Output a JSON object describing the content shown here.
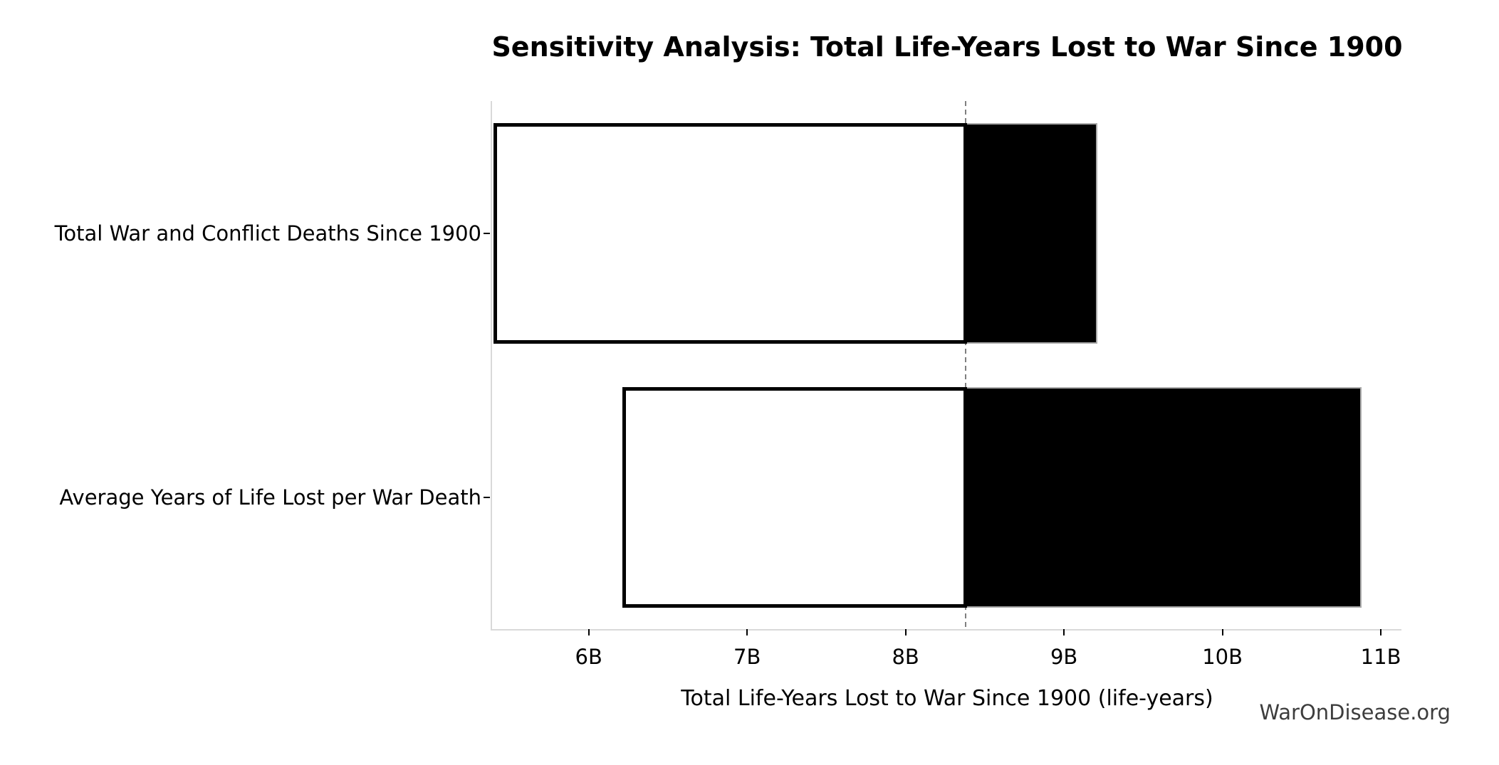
{
  "chart_data": {
    "type": "bar",
    "variant": "tornado-sensitivity-horizontal",
    "title": "Sensitivity Analysis: Total Life-Years Lost to War Since 1900",
    "xlabel": "Total Life-Years Lost to War Since 1900 (life-years)",
    "watermark": "WarOnDisease.org",
    "values_unit": "billions of life-years",
    "baseline_value": 8.38,
    "xlim": [
      5.39,
      11.13
    ],
    "grid": false,
    "legend_position": "none",
    "xticks": [
      {
        "value": 6,
        "label": "6B"
      },
      {
        "value": 7,
        "label": "7B"
      },
      {
        "value": 8,
        "label": "8B"
      },
      {
        "value": 9,
        "label": "9B"
      },
      {
        "value": 10,
        "label": "10B"
      },
      {
        "value": 11,
        "label": "11B"
      }
    ],
    "rows": [
      {
        "label": "Total War and Conflict Deaths Since 1900",
        "low": 5.41,
        "high": 9.2
      },
      {
        "label": "Average Years of Life Lost per War Death",
        "low": 6.22,
        "high": 10.87
      }
    ],
    "colors": {
      "low_segment_fill": "#ffffff",
      "low_segment_edge": "#000000",
      "high_segment_fill": "#000000",
      "high_segment_edge": "#aaaaaa",
      "baseline_line": "#7f7f7f",
      "axis_spine": "#d9d9d9",
      "tick_mark": "#000000",
      "text": "#000000",
      "watermark_text": "#3d3d3d"
    }
  }
}
